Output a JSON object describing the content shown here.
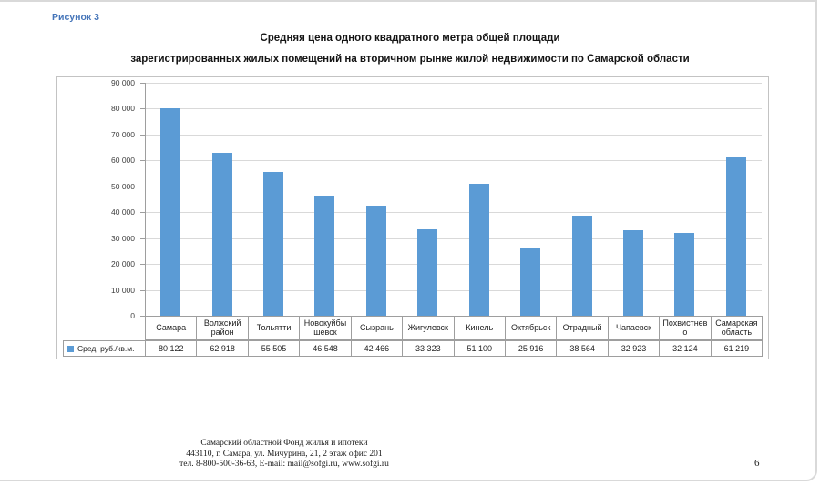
{
  "page": {
    "figure_label": "Рисунок 3",
    "title_line1": "Средняя цена одного квадратного метра общей площади",
    "title_line2": "зарегистрированных жилых помещений на вторичном рынке жилой недвижимости по Самарской области",
    "footer_lines": [
      "Самарский областной Фонд жилья и ипотеки",
      "443110, г. Самара, ул. Мичурина, 21, 2 этаж офис 201",
      "тел. 8-800-500-36-63, E-mail: mail@sofgi.ru, www.sofgi.ru"
    ],
    "page_number": "6",
    "accent_color": "#4575b9"
  },
  "chart_data": {
    "type": "bar",
    "title": "Средняя цена одного квадратного метра общей площади зарегистрированных жилых помещений на вторичном рынке жилой недвижимости по Самарской области",
    "series_label": "Сред. руб./кв.м.",
    "categories": [
      "Самара",
      "Волжский район",
      "Тольятти",
      "Новокуйбышевск",
      "Сызрань",
      "Жигулевск",
      "Кинель",
      "Октябрьск",
      "Отрадный",
      "Чапаевск",
      "Похвистнево",
      "Самарская область"
    ],
    "values": [
      80122,
      62918,
      55505,
      46548,
      42466,
      33323,
      51100,
      25916,
      38564,
      32923,
      32124,
      61219
    ],
    "value_labels": [
      "80 122",
      "62 918",
      "55 505",
      "46 548",
      "42 466",
      "33 323",
      "51 100",
      "25 916",
      "38 564",
      "32 923",
      "32 124",
      "61 219"
    ],
    "y_tick_labels": [
      "90 000",
      "80 000",
      "70 000",
      "60 000",
      "50 000",
      "40 000",
      "30 000",
      "20 000",
      "10 000",
      "0"
    ],
    "ylim": [
      0,
      90000
    ],
    "grid": true,
    "bar_color": "#5b9bd5",
    "gridline_color": "#d9d9d9",
    "axis_color": "#9e9e9e",
    "legend_position": "table-left"
  }
}
